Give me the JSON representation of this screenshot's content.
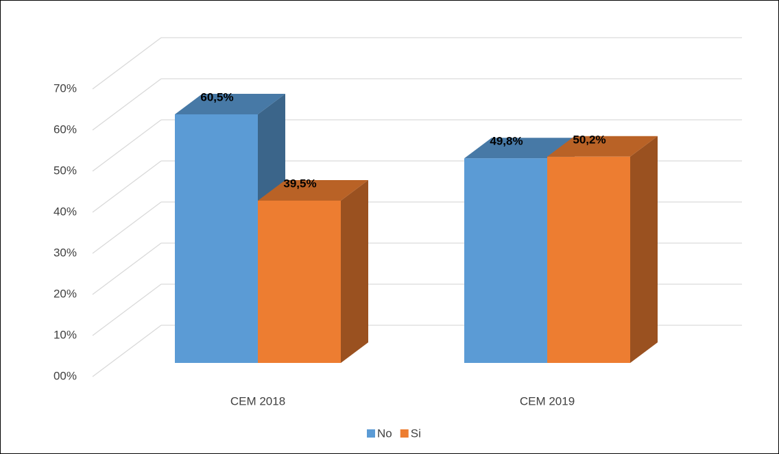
{
  "chart_data": {
    "type": "bar3d",
    "categories": [
      "CEM 2018",
      "CEM 2019"
    ],
    "series": [
      {
        "name": "No",
        "color": "#5b9bd5",
        "values": [
          60.5,
          49.8
        ],
        "value_labels": [
          "60,5%",
          "49,8%"
        ]
      },
      {
        "name": "Si",
        "color": "#ed7d31",
        "values": [
          39.5,
          50.2
        ],
        "value_labels": [
          "39,5%",
          "50,2%"
        ]
      }
    ],
    "ylim": [
      0,
      70
    ],
    "yticks": [
      {
        "value": 0,
        "label": "00%"
      },
      {
        "value": 10,
        "label": "10%"
      },
      {
        "value": 20,
        "label": "20%"
      },
      {
        "value": 30,
        "label": "30%"
      },
      {
        "value": 40,
        "label": "40%"
      },
      {
        "value": 50,
        "label": "50%"
      },
      {
        "value": 60,
        "label": "60%"
      },
      {
        "value": 70,
        "label": "70%"
      }
    ],
    "grid": true,
    "legend": "bottom"
  }
}
